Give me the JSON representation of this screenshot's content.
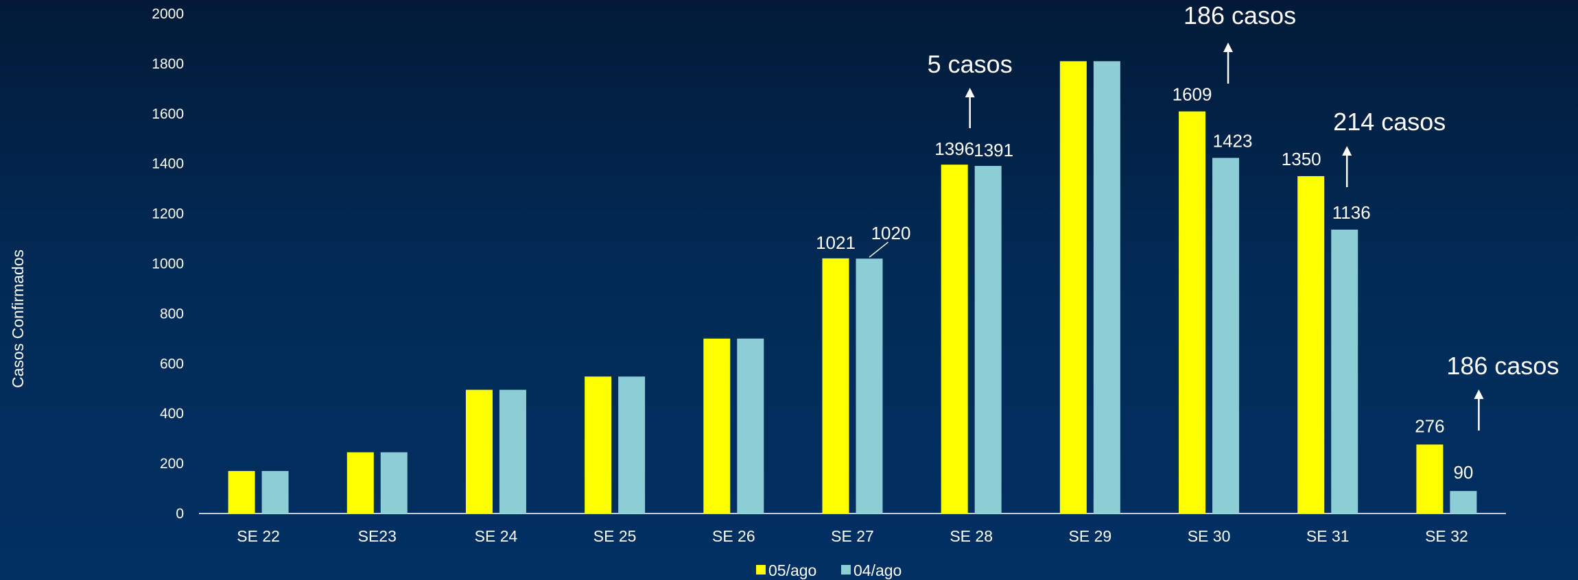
{
  "chart_data": {
    "type": "bar",
    "title": "",
    "xlabel": "",
    "ylabel": "Casos Confirmados",
    "ylim": [
      0,
      2000
    ],
    "yticks": [
      0,
      200,
      400,
      600,
      800,
      1000,
      1200,
      1400,
      1600,
      1800,
      2000
    ],
    "grid": false,
    "legend_position": "bottom",
    "categories": [
      "SE 22",
      "SE23",
      "SE 24",
      "SE 25",
      "SE 26",
      "SE 27",
      "SE 28",
      "SE 29",
      "SE 30",
      "SE 31",
      "SE 32"
    ],
    "series": [
      {
        "name": "05/ago",
        "color": "#ffff00",
        "values": [
          170,
          245,
          495,
          548,
          700,
          1021,
          1396,
          1810,
          1609,
          1350,
          276
        ],
        "labels": [
          null,
          null,
          null,
          null,
          null,
          "1021",
          "1396",
          null,
          "1609",
          "1350",
          "276"
        ]
      },
      {
        "name": "04/ago",
        "color": "#8ccdd6",
        "values": [
          170,
          245,
          495,
          548,
          700,
          1020,
          1391,
          1810,
          1423,
          1136,
          90
        ],
        "labels": [
          null,
          null,
          null,
          null,
          null,
          "1020",
          "1391",
          null,
          "1423",
          "1136",
          "90"
        ]
      }
    ],
    "annotations": [
      {
        "text": "5 casos",
        "category": "SE 28"
      },
      {
        "text": "186 casos",
        "category": "SE 30"
      },
      {
        "text": "214 casos",
        "category": "SE 31"
      },
      {
        "text": "186 casos",
        "category": "SE 32"
      }
    ]
  }
}
